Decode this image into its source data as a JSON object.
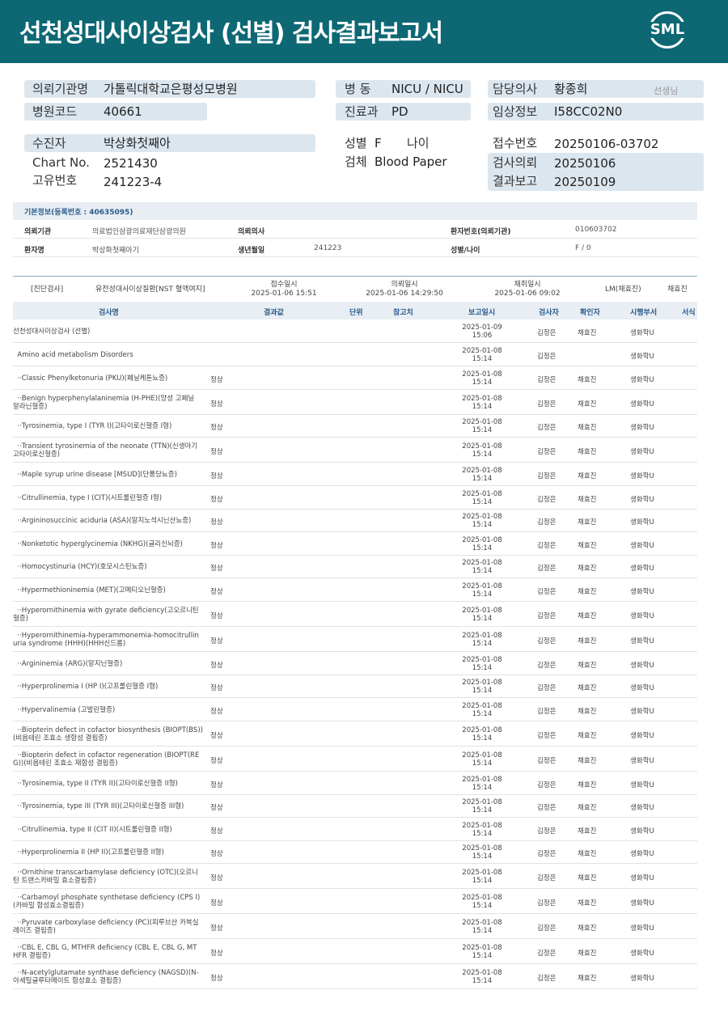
{
  "header": {
    "title": "선천성대사이상검사 (선별) 검사결과보고서",
    "logo": "SML"
  },
  "info": {
    "hospital_label": "의뢰기관명",
    "hospital": "가톨릭대학교은평성모병원",
    "code_label": "병원코드",
    "code": "40661",
    "ward_label": "병  동",
    "ward": "NICU / NICU",
    "dept_label": "진료과",
    "dept": "PD",
    "doctor_label": "담당의사",
    "doctor": "황종희",
    "doctor_suffix": "선생님",
    "clinical_label": "임상정보",
    "clinical": "I58CC02N0",
    "patient_label": "수진자",
    "patient": "박상화첫째아",
    "chart_label": "Chart No.",
    "chart": "2521430",
    "unique_label": "고유번호",
    "unique": "241223-4",
    "sex_label": "성별",
    "sex": "F",
    "age_label": "나이",
    "age": "",
    "specimen_label": "검체",
    "specimen": "Blood Paper",
    "receipt_label": "접수번호",
    "receipt": "20250106-03702",
    "request_label": "검사의뢰",
    "request": "20250106",
    "report_label": "결과보고",
    "report": "20250109"
  },
  "basic": {
    "title": "기본정보(등록번호 : 40635095)",
    "org_label": "의뢰기관",
    "org": "의료법인삼광의료재단삼광의원",
    "req_doc_label": "의뢰의사",
    "req_doc": "",
    "pid_label": "환자번호(의뢰기관)",
    "pid": "010603702",
    "name_label": "환자명",
    "name": "박상화첫째아기",
    "dob_label": "생년월일",
    "dob": "241223",
    "sexage_label": "성별/나이",
    "sexage": "F / 0"
  },
  "exam": {
    "category": "[진단검사]",
    "test": "유전성대사이상질환[NST 혈액여지]",
    "received_label": "접수일시",
    "received": "2025-01-06 15:51",
    "requested_label": "의뢰일시",
    "requested": "2025-01-06 14:29:50",
    "collected_label": "채취일시",
    "collected": "2025-01-06 09:02",
    "lm": "LM(채효진)",
    "confirmer": "채효진"
  },
  "columns": {
    "name": "검사명",
    "result": "결과값",
    "unit": "단위",
    "ref": "참고치",
    "date": "보고일시",
    "examiner": "검사자",
    "confirmer": "확인자",
    "dept": "시행부서",
    "form": "서식"
  },
  "rows": [
    {
      "name": "선천성대사이상검사 (선별)",
      "result": "",
      "date": "2025-01-09",
      "time": "15:06",
      "examiner": "김정은",
      "confirmer": "채효진",
      "dept": "생화학U"
    },
    {
      "name": "  Amino acid metabolism Disorders",
      "result": "",
      "date": "2025-01-08",
      "time": "15:14",
      "examiner": "김정은",
      "confirmer": "",
      "dept": "생화학U"
    },
    {
      "name": "  ··Classic Phenylketonuria (PKU)(페닐케톤뇨증)",
      "result": "정상",
      "date": "2025-01-08",
      "time": "15:14",
      "examiner": "김정은",
      "confirmer": "채효진",
      "dept": "생화학U"
    },
    {
      "name": "  ··Benign hyperphenylalaninemia (H-PHE)(양성 고페닐\n알라닌혈증)",
      "result": "정상",
      "date": "2025-01-08",
      "time": "15:14",
      "examiner": "김정은",
      "confirmer": "채효진",
      "dept": "생화학U"
    },
    {
      "name": "  ··Tyrosinemia, type I (TYR I)(고타이로신혈증 I형)",
      "result": "정상",
      "date": "2025-01-08",
      "time": "15:14",
      "examiner": "김정은",
      "confirmer": "채효진",
      "dept": "생화학U"
    },
    {
      "name": "  ··Transient tyrosinemia of the neonate (TTN)(신생아기\n고타이로신혈증)",
      "result": "정상",
      "date": "2025-01-08",
      "time": "15:14",
      "examiner": "김정은",
      "confirmer": "채효진",
      "dept": "생화학U"
    },
    {
      "name": "  ··Maple syrup urine disease [MSUD](단풍당뇨증)",
      "result": "정상",
      "date": "2025-01-08",
      "time": "15:14",
      "examiner": "김정은",
      "confirmer": "채효진",
      "dept": "생화학U"
    },
    {
      "name": "  ··Citrullinemia, type I (CIT)(시트룰린혈증 I형)",
      "result": "정상",
      "date": "2025-01-08",
      "time": "15:14",
      "examiner": "김정은",
      "confirmer": "채효진",
      "dept": "생화학U"
    },
    {
      "name": "  ··Argininosuccinic aciduria (ASA)(알지노석시닌산뇨증)",
      "result": "정상",
      "date": "2025-01-08",
      "time": "15:14",
      "examiner": "김정은",
      "confirmer": "채효진",
      "dept": "생화학U"
    },
    {
      "name": "  ··Nonketotic hyperglycinemia (NKHG)(글리신뇌증)",
      "result": "정상",
      "date": "2025-01-08",
      "time": "15:14",
      "examiner": "김정은",
      "confirmer": "채효진",
      "dept": "생화학U"
    },
    {
      "name": "  ··Homocystinuria (HCY)(호모시스틴뇨증)",
      "result": "정상",
      "date": "2025-01-08",
      "time": "15:14",
      "examiner": "김정은",
      "confirmer": "채효진",
      "dept": "생화학U"
    },
    {
      "name": "  ··Hypermethioninemia (MET)(고메티오닌혈증)",
      "result": "정상",
      "date": "2025-01-08",
      "time": "15:14",
      "examiner": "김정은",
      "confirmer": "채효진",
      "dept": "생화학U"
    },
    {
      "name": "  ··Hyperornithinemia with gyrate deficiency(고오르니틴\n혈증)",
      "result": "정상",
      "date": "2025-01-08",
      "time": "15:14",
      "examiner": "김정은",
      "confirmer": "채효진",
      "dept": "생화학U"
    },
    {
      "name": "  ··Hyperornithinemia-hyperammonemia-homocitrullin\nuria syndrome (HHH)(HHH신드롬)",
      "result": "정상",
      "date": "2025-01-08",
      "time": "15:14",
      "examiner": "김정은",
      "confirmer": "채효진",
      "dept": "생화학U"
    },
    {
      "name": "  ··Argininemia (ARG)(알지닌혈증)",
      "result": "정상",
      "date": "2025-01-08",
      "time": "15:14",
      "examiner": "김정은",
      "confirmer": "채효진",
      "dept": "생화학U"
    },
    {
      "name": "  ··Hyperprolinemia I (HP I)(고프롤린혈증 I형)",
      "result": "정상",
      "date": "2025-01-08",
      "time": "15:14",
      "examiner": "김정은",
      "confirmer": "채효진",
      "dept": "생화학U"
    },
    {
      "name": "  ··Hypervalinemia (고발린혈증)",
      "result": "정상",
      "date": "2025-01-08",
      "time": "15:14",
      "examiner": "김정은",
      "confirmer": "채효진",
      "dept": "생화학U"
    },
    {
      "name": "  ··Biopterin defect in cofactor biosynthesis (BIOPT(BS))\n(비옵테린 조효소 생합성 결핍증)",
      "result": "정상",
      "date": "2025-01-08",
      "time": "15:14",
      "examiner": "김정은",
      "confirmer": "채효진",
      "dept": "생화학U"
    },
    {
      "name": "  ··Biopterin defect in cofactor regeneration (BIOPT(RE\nG))(비옵테린 조효소 재합성 결핍증)",
      "result": "정상",
      "date": "2025-01-08",
      "time": "15:14",
      "examiner": "김정은",
      "confirmer": "채효진",
      "dept": "생화학U"
    },
    {
      "name": "  ··Tyrosinemia, type II (TYR II)(고타이로신혈증 II형)",
      "result": "정상",
      "date": "2025-01-08",
      "time": "15:14",
      "examiner": "김정은",
      "confirmer": "채효진",
      "dept": "생화학U"
    },
    {
      "name": "  ··Tyrosinemia, type III (TYR III)(고타이로신혈증 III형)",
      "result": "정상",
      "date": "2025-01-08",
      "time": "15:14",
      "examiner": "김정은",
      "confirmer": "채효진",
      "dept": "생화학U"
    },
    {
      "name": "  ··Citrullinemia, type II (CIT II)(시트룰린혈증 II형)",
      "result": "정상",
      "date": "2025-01-08",
      "time": "15:14",
      "examiner": "김정은",
      "confirmer": "채효진",
      "dept": "생화학U"
    },
    {
      "name": "  ··Hyperprolinemia II (HP II)(고프롤린혈증 II형)",
      "result": "정상",
      "date": "2025-01-08",
      "time": "15:14",
      "examiner": "김정은",
      "confirmer": "채효진",
      "dept": "생화학U"
    },
    {
      "name": "  ··Ornithine transcarbamylase deficiency (OTC)(오르니\n틴 트랜스카바밀 효소결핍증)",
      "result": "정상",
      "date": "2025-01-08",
      "time": "15:14",
      "examiner": "김정은",
      "confirmer": "채효진",
      "dept": "생화학U"
    },
    {
      "name": "  ··Carbamoyl phosphate synthetase deficiency (CPS I)\n(카바밀 합성효소결핍증)",
      "result": "정상",
      "date": "2025-01-08",
      "time": "15:14",
      "examiner": "김정은",
      "confirmer": "채효진",
      "dept": "생화학U"
    },
    {
      "name": "  ··Pyruvate carboxylase deficiency (PC)(피루브산 카복실\n레이즈 결핍증)",
      "result": "정상",
      "date": "2025-01-08",
      "time": "15:14",
      "examiner": "김정은",
      "confirmer": "채효진",
      "dept": "생화학U"
    },
    {
      "name": "  ··CBL E, CBL G, MTHFR deficiency (CBL E, CBL G, MT\nHFR 결핍증)",
      "result": "정상",
      "date": "2025-01-08",
      "time": "15:14",
      "examiner": "김정은",
      "confirmer": "채효진",
      "dept": "생화학U"
    },
    {
      "name": "  ··N-acetylglutamate synthase deficiency (NAGSD)(N-\n아세틸글루타메이트 합성효소 결핍증)",
      "result": "정상",
      "date": "2025-01-08",
      "time": "15:14",
      "examiner": "김정은",
      "confirmer": "채효진",
      "dept": "생화학U"
    }
  ]
}
